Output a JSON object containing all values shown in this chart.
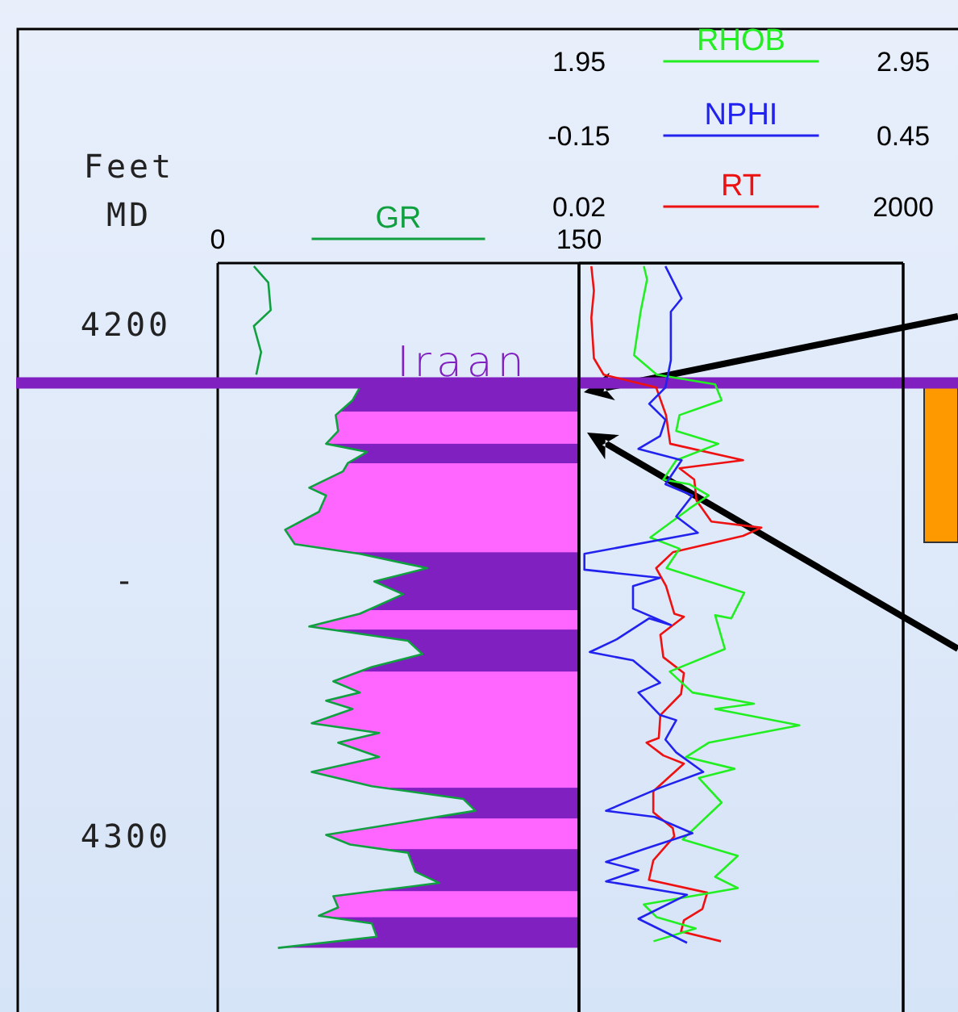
{
  "chart_data": [
    {
      "type": "line",
      "xlabel": "GR",
      "ylabel": "Feet MD",
      "xlim": [
        0,
        150
      ],
      "xticks": [
        0,
        150
      ],
      "ylim": [
        4334,
        4188
      ],
      "yticks": [
        4200,
        {
          "value": 4250,
          "label": "-"
        },
        4300
      ],
      "grid": false,
      "series": [
        {
          "color": "#10a040",
          "x": [
            15,
            21,
            22,
            15,
            18,
            16
          ],
          "values": [
            4188.6,
            4191.8,
            4197.2,
            4200.3,
            4205.4,
            4209.8
          ]
        },
        {
          "color": "#10a040",
          "x": [
            59,
            56,
            49,
            50,
            45,
            62,
            54,
            52,
            38,
            45,
            42,
            28,
            32,
            59,
            87,
            65,
            77,
            59,
            38,
            79,
            85,
            64,
            48,
            59,
            45,
            56,
            39,
            67,
            50,
            67,
            39,
            64,
            102,
            107,
            45,
            55,
            79,
            82,
            92,
            48,
            50,
            42,
            64,
            66,
            25
          ],
          "values": [
            4212.3,
            4214.8,
            4217.7,
            4220.8,
            4223.3,
            4224.9,
            4227.1,
            4228.7,
            4231.9,
            4233.4,
            4236.6,
            4240.1,
            4242.9,
            4244.8,
            4247.6,
            4250.2,
            4252.7,
            4256.5,
            4259.0,
            4261.8,
            4264.4,
            4266.9,
            4269.7,
            4271.9,
            4273.5,
            4275.1,
            4277.9,
            4279.8,
            4281.7,
            4284.5,
            4287.4,
            4290.2,
            4292.7,
            4295.0,
            4299.7,
            4301.6,
            4303.2,
            4306.9,
            4309.1,
            4311.7,
            4313.9,
            4315.5,
            4317.0,
            4319.6,
            4321.8
          ]
        }
      ],
      "bands": [
        {
          "axis": "y",
          "from": 4211.4,
          "to": 4321.8,
          "color": "#ff66ff"
        },
        {
          "axis": "y",
          "from": 4211.4,
          "to": 4217.0,
          "color": "#8020c0"
        },
        {
          "axis": "y",
          "from": 4223.3,
          "to": 4227.1,
          "color": "#8020c0"
        },
        {
          "axis": "y",
          "from": 4244.5,
          "to": 4255.8,
          "color": "#8020c0"
        },
        {
          "axis": "y",
          "from": 4259.6,
          "to": 4267.8,
          "color": "#8020c0"
        },
        {
          "axis": "y",
          "from": 4290.5,
          "to": 4296.5,
          "color": "#8020c0"
        },
        {
          "axis": "y",
          "from": 4302.5,
          "to": 4310.7,
          "color": "#8020c0"
        },
        {
          "axis": "y",
          "from": 4315.8,
          "to": 4321.8,
          "color": "#8020c0"
        }
      ],
      "ref_lines": [
        {
          "axis": "y",
          "value": 4211.4,
          "label": "Iraan",
          "color": "#8020c0"
        }
      ]
    },
    {
      "type": "line",
      "xlabel": "RT",
      "x2label": "RHOB",
      "log": "x",
      "xlim": [
        0.02,
        2000
      ],
      "xticks": [
        0.02,
        2000
      ],
      "x2lim": [
        1.95,
        2.95
      ],
      "x2ticks": [
        1.95,
        2.95
      ],
      "ylim": [
        4334,
        4188
      ],
      "tick_labels": "x",
      "grid": false,
      "series": [
        {
          "color": "#ee1111",
          "x": [
            0.031,
            0.034,
            0.031,
            0.034,
            0.048,
            0.31,
            0.44,
            0.51,
            6.8,
            0.71,
            1.2,
            1.3,
            2.2,
            13,
            6.8,
            0.56,
            0.31,
            0.44,
            0.59,
            0.83,
            0.36,
            0.4,
            0.83,
            0.75,
            0.36,
            0.34,
            0.22,
            0.4,
            0.83,
            0.28,
            0.28,
            0.56,
            0.59,
            0.28,
            0.24,
            1.9,
            1.6,
            0.83,
            0.75,
            3.1
          ],
          "values": [
            4188.6,
            4193.4,
            4198.7,
            4206.6,
            4209.8,
            4212.3,
            4217.7,
            4223.3,
            4226.5,
            4228.1,
            4230.3,
            4234.4,
            4238.5,
            4239.7,
            4241.3,
            4244.5,
            4247.6,
            4251.1,
            4256.5,
            4257.1,
            4260.6,
            4265.0,
            4268.1,
            4272.2,
            4276.3,
            4280.8,
            4281.7,
            4284.2,
            4285.8,
            4291.2,
            4295.3,
            4298.4,
            4300.0,
            4304.7,
            4308.5,
            4311.0,
            4314.2,
            4316.4,
            4318.6,
            4320.5
          ]
        },
        {
          "color": "#22ee22",
          "axis": "x2",
          "x": [
            2.15,
            2.16,
            2.14,
            2.12,
            2.19,
            2.37,
            2.39,
            2.26,
            2.25,
            2.38,
            2.25,
            2.21,
            2.29,
            2.35,
            2.29,
            2.17,
            2.26,
            2.22,
            2.46,
            2.42,
            2.37,
            2.4,
            2.23,
            2.3,
            2.49,
            2.37,
            2.63,
            2.35,
            2.28,
            2.43,
            2.32,
            2.39,
            2.27,
            2.44,
            2.37,
            2.44,
            2.15,
            2.19,
            2.31,
            2.18
          ],
          "values": [
            4188.6,
            4191.2,
            4197.5,
            4206.0,
            4209.8,
            4211.7,
            4214.8,
            4217.7,
            4220.8,
            4223.3,
            4226.5,
            4230.3,
            4231.2,
            4233.4,
            4236.0,
            4241.6,
            4243.8,
            4247.6,
            4252.4,
            4257.4,
            4256.8,
            4263.4,
            4267.8,
            4271.9,
            4274.1,
            4275.1,
            4278.3,
            4281.7,
            4284.5,
            4286.8,
            4288.6,
            4293.4,
            4300.6,
            4303.8,
            4307.9,
            4310.1,
            4313.3,
            4315.8,
            4318.0,
            4320.5
          ]
        }
      ]
    },
    {
      "type": "line",
      "xlabel": "NPHI",
      "xlim": [
        -0.15,
        0.45
      ],
      "xticks": [
        -0.15,
        0.45
      ],
      "ylim": [
        4334,
        4188
      ],
      "tick_labels": "x",
      "grid": false,
      "series": [
        {
          "color": "#2222ee",
          "x": [
            0.01,
            0.04,
            0.02,
            0.02,
            0.01,
            -0.02,
            0.01,
            0.0,
            -0.04,
            0.04,
            0.01,
            0.06,
            0.03,
            0.07,
            -0.14,
            -0.14,
            0.0,
            -0.05,
            -0.05,
            0.02,
            -0.02,
            -0.08,
            -0.13,
            -0.05,
            0.0,
            -0.04,
            0.0,
            0.03,
            0.01,
            0.03,
            0.08,
            0.0,
            -0.1,
            -0.01,
            0.06,
            -0.03,
            -0.1,
            -0.04,
            -0.1,
            0.05,
            -0.04,
            0.05
          ],
          "values": [
            4188.6,
            4194.9,
            4197.5,
            4207.0,
            4212.3,
            4215.5,
            4218.6,
            4221.8,
            4224.3,
            4226.5,
            4231.2,
            4233.4,
            4237.5,
            4240.7,
            4244.8,
            4247.9,
            4249.5,
            4251.1,
            4255.5,
            4258.7,
            4257.4,
            4261.5,
            4264.0,
            4265.6,
            4270.0,
            4271.9,
            4276.3,
            4277.3,
            4281.1,
            4283.6,
            4287.4,
            4290.5,
            4295.0,
            4296.2,
            4299.4,
            4302.5,
            4305.0,
            4306.6,
            4308.8,
            4311.4,
            4316.1,
            4320.8
          ]
        }
      ]
    }
  ]
}
